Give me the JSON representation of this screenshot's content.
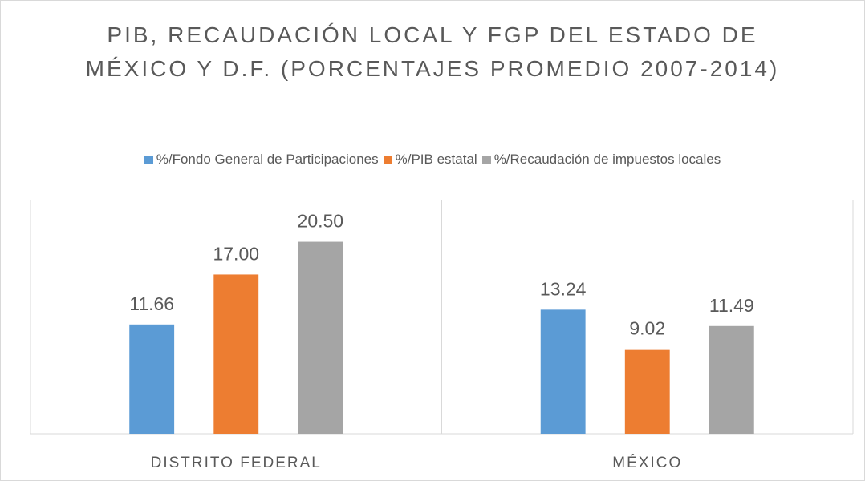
{
  "chart_data": {
    "type": "bar",
    "title": "PIB, RECAUDACIÓN LOCAL Y FGP DEL ESTADO DE MÉXICO Y D.F. (PORCENTAJES PROMEDIO 2007-2014)",
    "categories": [
      "DISTRITO FEDERAL",
      "MÉXICO"
    ],
    "series": [
      {
        "name": "%/Fondo General de Participaciones",
        "color": "#5b9bd5",
        "values": [
          11.66,
          13.24
        ],
        "value_labels": [
          "11.66",
          "13.24"
        ]
      },
      {
        "name": "%/PIB estatal",
        "color": "#ed7d31",
        "values": [
          17,
          9.02
        ],
        "value_labels": [
          "17.00",
          "9.02"
        ]
      },
      {
        "name": "%/Recaudación de impuestos locales",
        "color": "#a5a5a5",
        "values": [
          20.5,
          11.49
        ],
        "value_labels": [
          "20.50",
          "11.49"
        ]
      }
    ],
    "ylim": [
      0,
      25
    ],
    "legend": "top"
  }
}
